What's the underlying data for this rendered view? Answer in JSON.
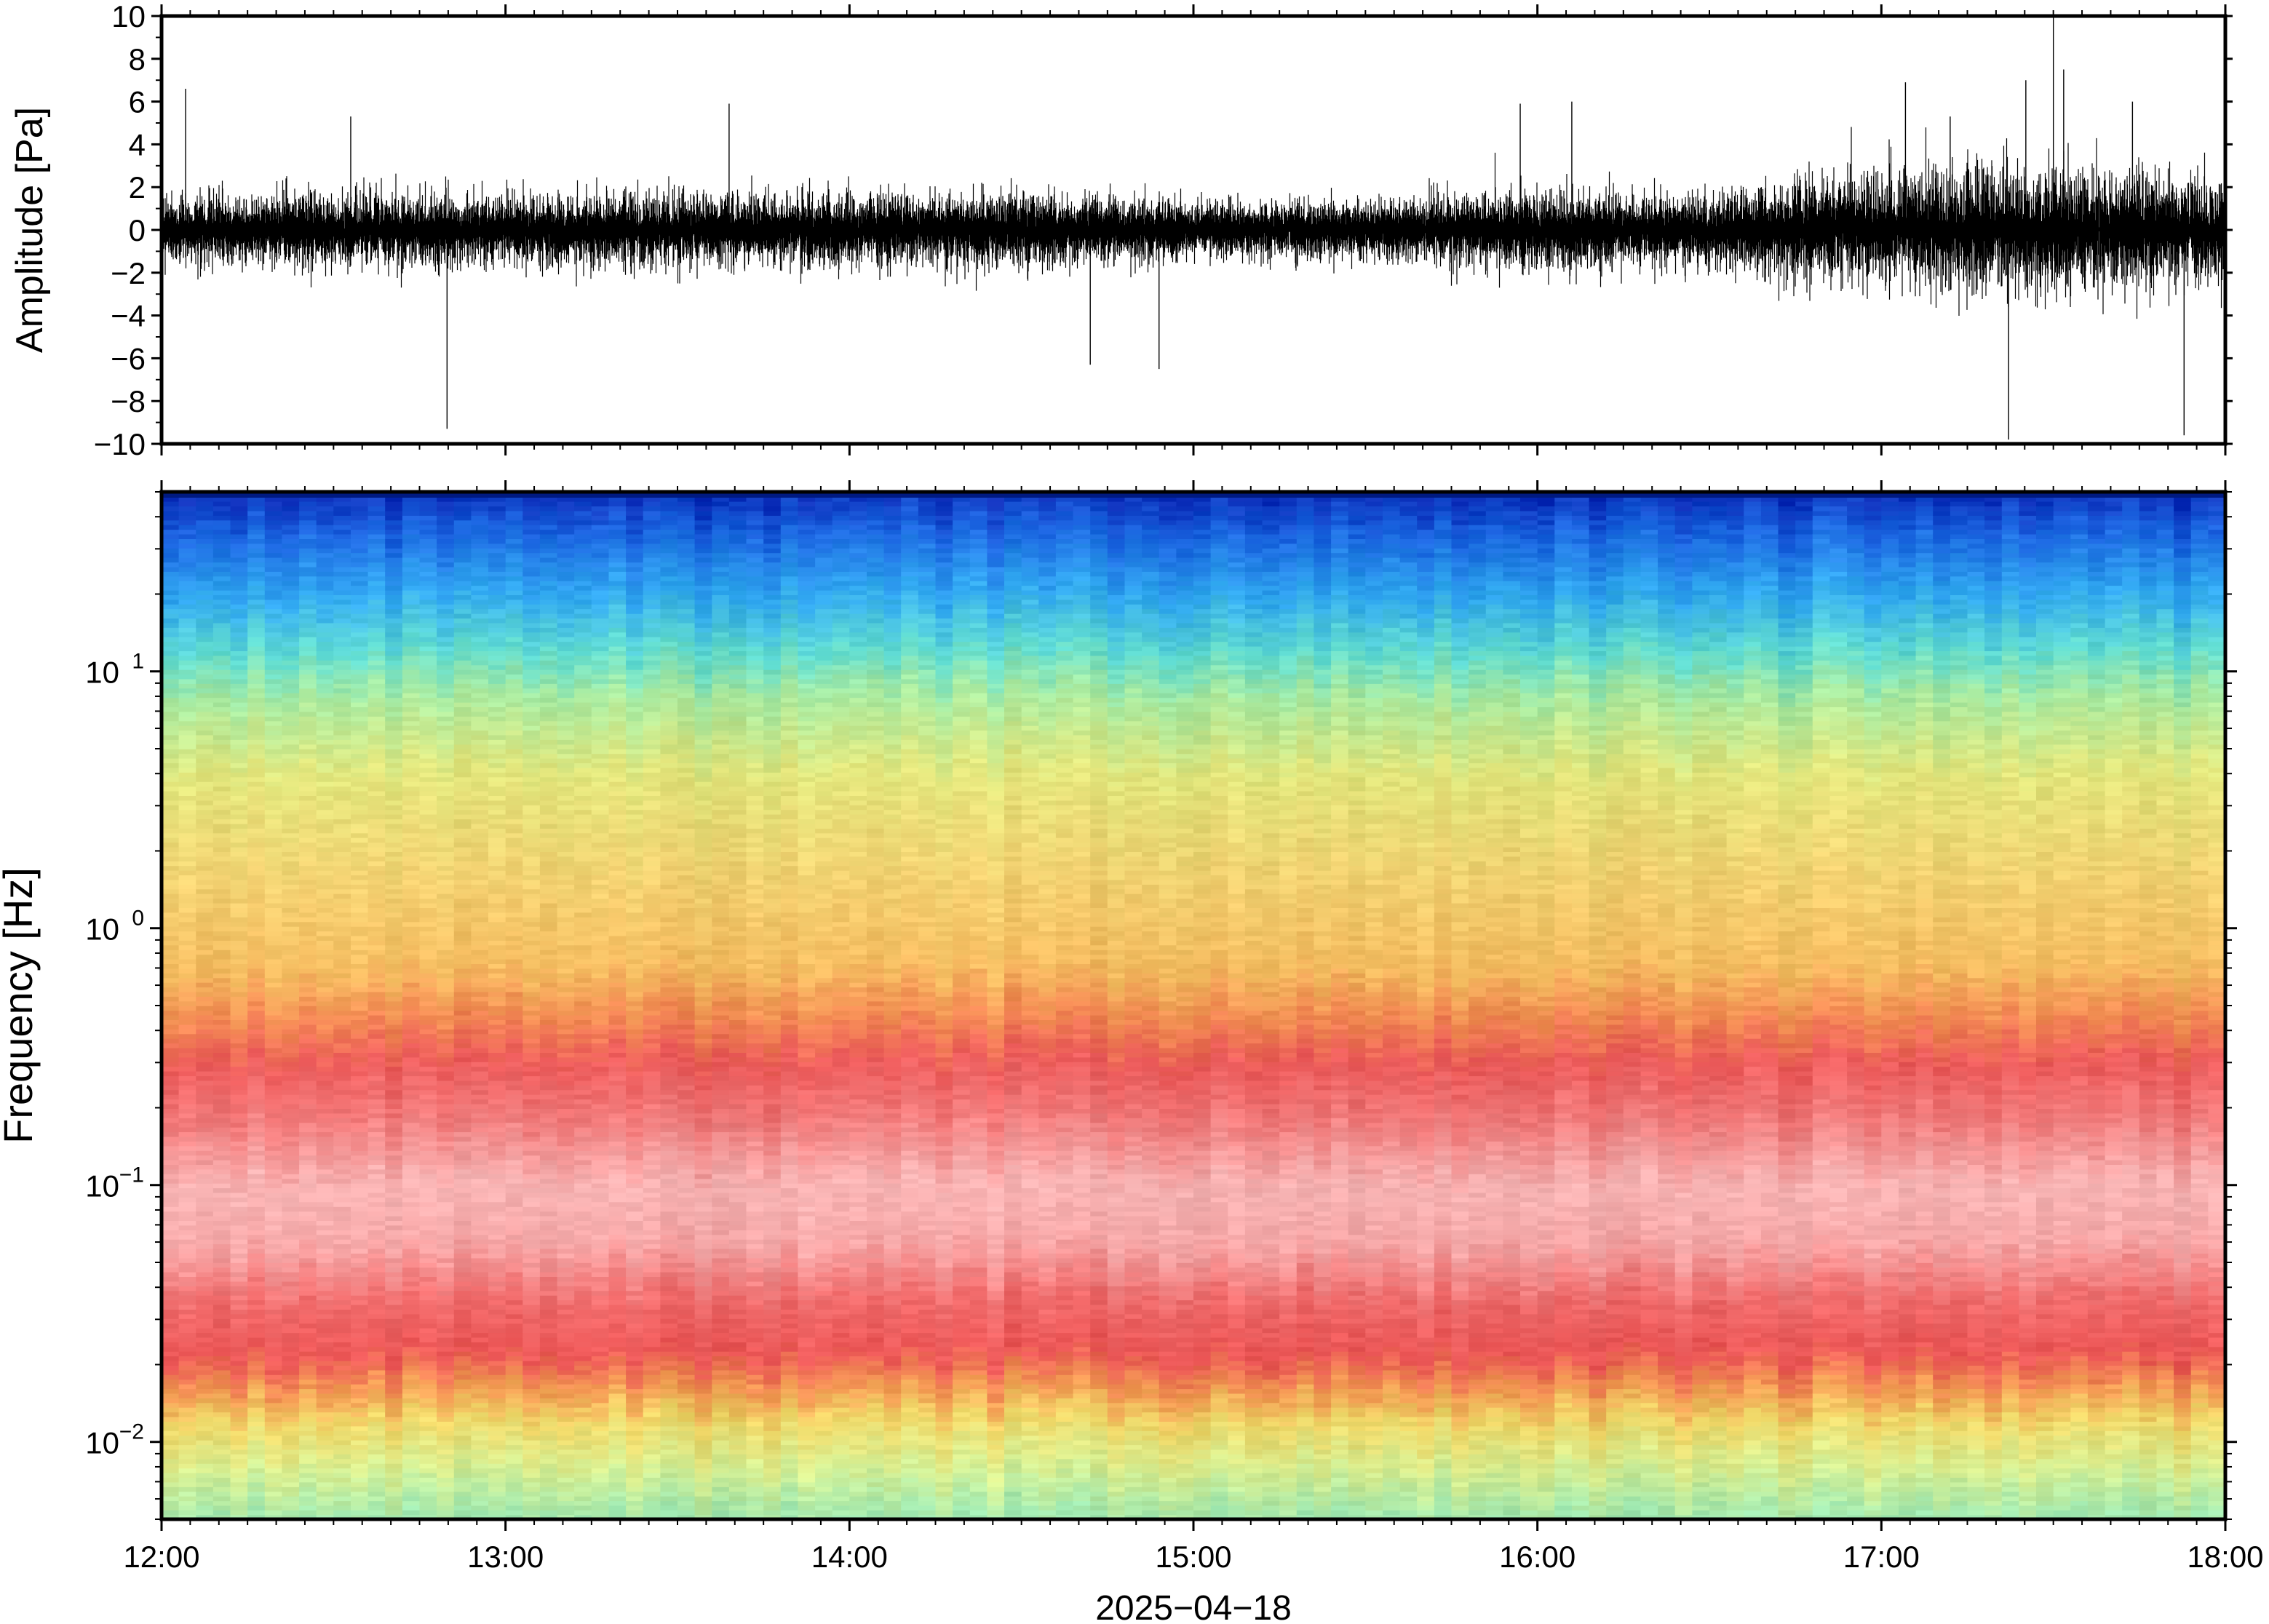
{
  "chart_data": [
    {
      "type": "line",
      "panel": "waveform",
      "ylabel": "Amplitude [Pa]",
      "ylim": [
        -10,
        10
      ],
      "y_ticks": [
        -10,
        -8,
        -6,
        -4,
        -2,
        0,
        2,
        4,
        6,
        8,
        10
      ],
      "y_tick_labels": [
        "−10",
        "−8",
        "−6",
        "−4",
        "−2",
        "0",
        "2",
        "4",
        "6",
        "8",
        "10"
      ],
      "xlim": [
        "12:00",
        "18:00"
      ],
      "envelope": {
        "time_hours": [
          12.0,
          12.5,
          13.0,
          13.5,
          14.0,
          14.5,
          15.0,
          15.5,
          16.0,
          16.5,
          17.0,
          17.5,
          18.0
        ],
        "typical_amplitude_pa": [
          2.0,
          2.0,
          2.0,
          2.0,
          2.0,
          2.0,
          1.5,
          1.6,
          2.2,
          2.0,
          3.5,
          3.6,
          3.2
        ]
      },
      "spikes": [
        {
          "time": 12.07,
          "value": 6.6
        },
        {
          "time": 12.55,
          "value": 5.3
        },
        {
          "time": 12.83,
          "value": -9.3
        },
        {
          "time": 13.65,
          "value": 5.9
        },
        {
          "time": 14.7,
          "value": -6.3
        },
        {
          "time": 14.9,
          "value": -6.5
        },
        {
          "time": 15.95,
          "value": 5.9
        },
        {
          "time": 16.1,
          "value": 6.0
        },
        {
          "time": 17.07,
          "value": 6.9
        },
        {
          "time": 17.37,
          "value": -9.8
        },
        {
          "time": 17.5,
          "value": 10.0
        },
        {
          "time": 17.53,
          "value": 7.5
        },
        {
          "time": 17.88,
          "value": -9.6
        },
        {
          "time": 17.73,
          "value": 6.0
        },
        {
          "time": 17.2,
          "value": 5.3
        },
        {
          "time": 17.42,
          "value": 7.0
        }
      ],
      "line_color": "#000000"
    },
    {
      "type": "heatmap",
      "panel": "spectrogram",
      "ylabel": "Frequency [Hz]",
      "y_scale": "log",
      "ylim": [
        0.005,
        50
      ],
      "y_ticks": [
        0.01,
        0.1,
        1,
        10
      ],
      "y_tick_labels": [
        {
          "base": "10",
          "exp": "−2"
        },
        {
          "base": "10",
          "exp": "−1"
        },
        {
          "base": "10",
          "exp": "0"
        },
        {
          "base": "10",
          "exp": "1"
        }
      ],
      "xlabel": "2025−04−18",
      "xlim": [
        "12:00",
        "18:00"
      ],
      "x_ticks": [
        "12:00",
        "13:00",
        "14:00",
        "15:00",
        "16:00",
        "17:00",
        "18:00"
      ],
      "colormap": [
        "#0027c8",
        "#1b8ff0",
        "#5fdcd8",
        "#bff0a0",
        "#ecec78",
        "#f8c85c",
        "#f48c4c",
        "#ec5050",
        "#f4a0a0",
        "#fbcaca"
      ],
      "color_profile_by_frequency": [
        {
          "freq_hz": 0.005,
          "color": "#9fe8b0"
        },
        {
          "freq_hz": 0.008,
          "color": "#d8ee90"
        },
        {
          "freq_hz": 0.012,
          "color": "#f0d868"
        },
        {
          "freq_hz": 0.016,
          "color": "#f29a52"
        },
        {
          "freq_hz": 0.022,
          "color": "#ec5656"
        },
        {
          "freq_hz": 0.035,
          "color": "#ef6a6a"
        },
        {
          "freq_hz": 0.06,
          "color": "#f6a8a8"
        },
        {
          "freq_hz": 0.1,
          "color": "#f7b4b4"
        },
        {
          "freq_hz": 0.18,
          "color": "#f07a7a"
        },
        {
          "freq_hz": 0.3,
          "color": "#ec5a5a"
        },
        {
          "freq_hz": 0.45,
          "color": "#f28a52"
        },
        {
          "freq_hz": 0.7,
          "color": "#f4bc60"
        },
        {
          "freq_hz": 1.5,
          "color": "#f2d070"
        },
        {
          "freq_hz": 4,
          "color": "#e2e67c"
        },
        {
          "freq_hz": 8,
          "color": "#a8eaa0"
        },
        {
          "freq_hz": 12,
          "color": "#60dcd0"
        },
        {
          "freq_hz": 20,
          "color": "#30a8f0"
        },
        {
          "freq_hz": 35,
          "color": "#1a64e0"
        },
        {
          "freq_hz": 50,
          "color": "#0a2cb8"
        }
      ]
    }
  ]
}
